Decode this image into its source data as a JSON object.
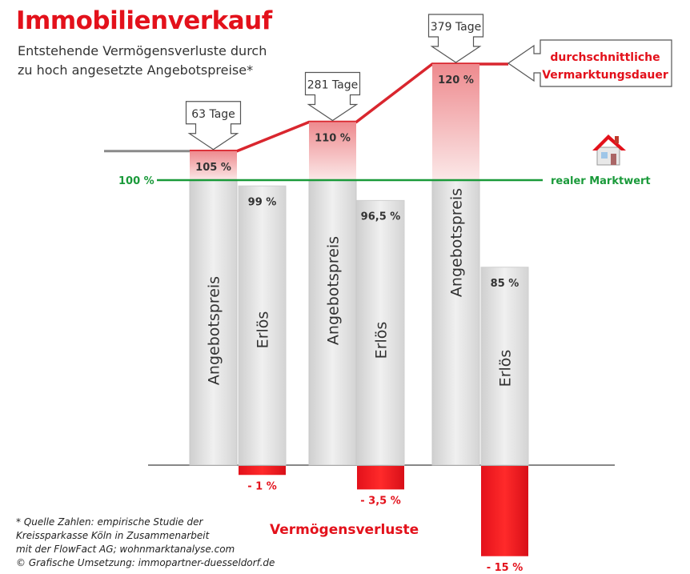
{
  "title": "Immobilienverkauf",
  "subtitle_lines": [
    "Entstehende Vermögensverluste durch",
    "zu hoch angesetzte Angebotspreise*"
  ],
  "footnote_lines": [
    "* Quelle Zahlen: empirische Studie der",
    "Kreissparkasse Köln in Zusammenarbeit",
    "mit der FlowFact AG; wohnmarktanalyse.com",
    "© Grafische Umsetzung: immopartner-duesseldorf.de"
  ],
  "loss_title": "Vermögensverluste",
  "colors": {
    "accent": "#e3111b",
    "market": "#1a9a3a",
    "bar": "#d8d8d8",
    "offer_top": "#ee8a8e"
  },
  "icons": [
    "house-icon"
  ],
  "chart_data": {
    "type": "bar",
    "groups": [
      {
        "offer": 105,
        "offer_label": "105 %",
        "revenue": 99,
        "revenue_label": "99 %",
        "loss": -1,
        "loss_label": "- 1 %",
        "days_label": "63 Tage"
      },
      {
        "offer": 110,
        "offer_label": "110 %",
        "revenue": 96.5,
        "revenue_label": "96,5 %",
        "loss": -3.5,
        "loss_label": "- 3,5 %",
        "days_label": "281 Tage"
      },
      {
        "offer": 120,
        "offer_label": "120 %",
        "revenue": 85,
        "revenue_label": "85 %",
        "loss": -15,
        "loss_label": "- 15 %",
        "days_label": "379 Tage"
      }
    ],
    "series_labels": {
      "offer": "Angebotspreis",
      "revenue": "Erlös"
    },
    "reference": {
      "value": 100,
      "label_left": "100 %",
      "label_right": "realer Marktwert"
    },
    "duration_callout": [
      "durchschnittliche",
      "Vermarktungsdauer"
    ]
  }
}
